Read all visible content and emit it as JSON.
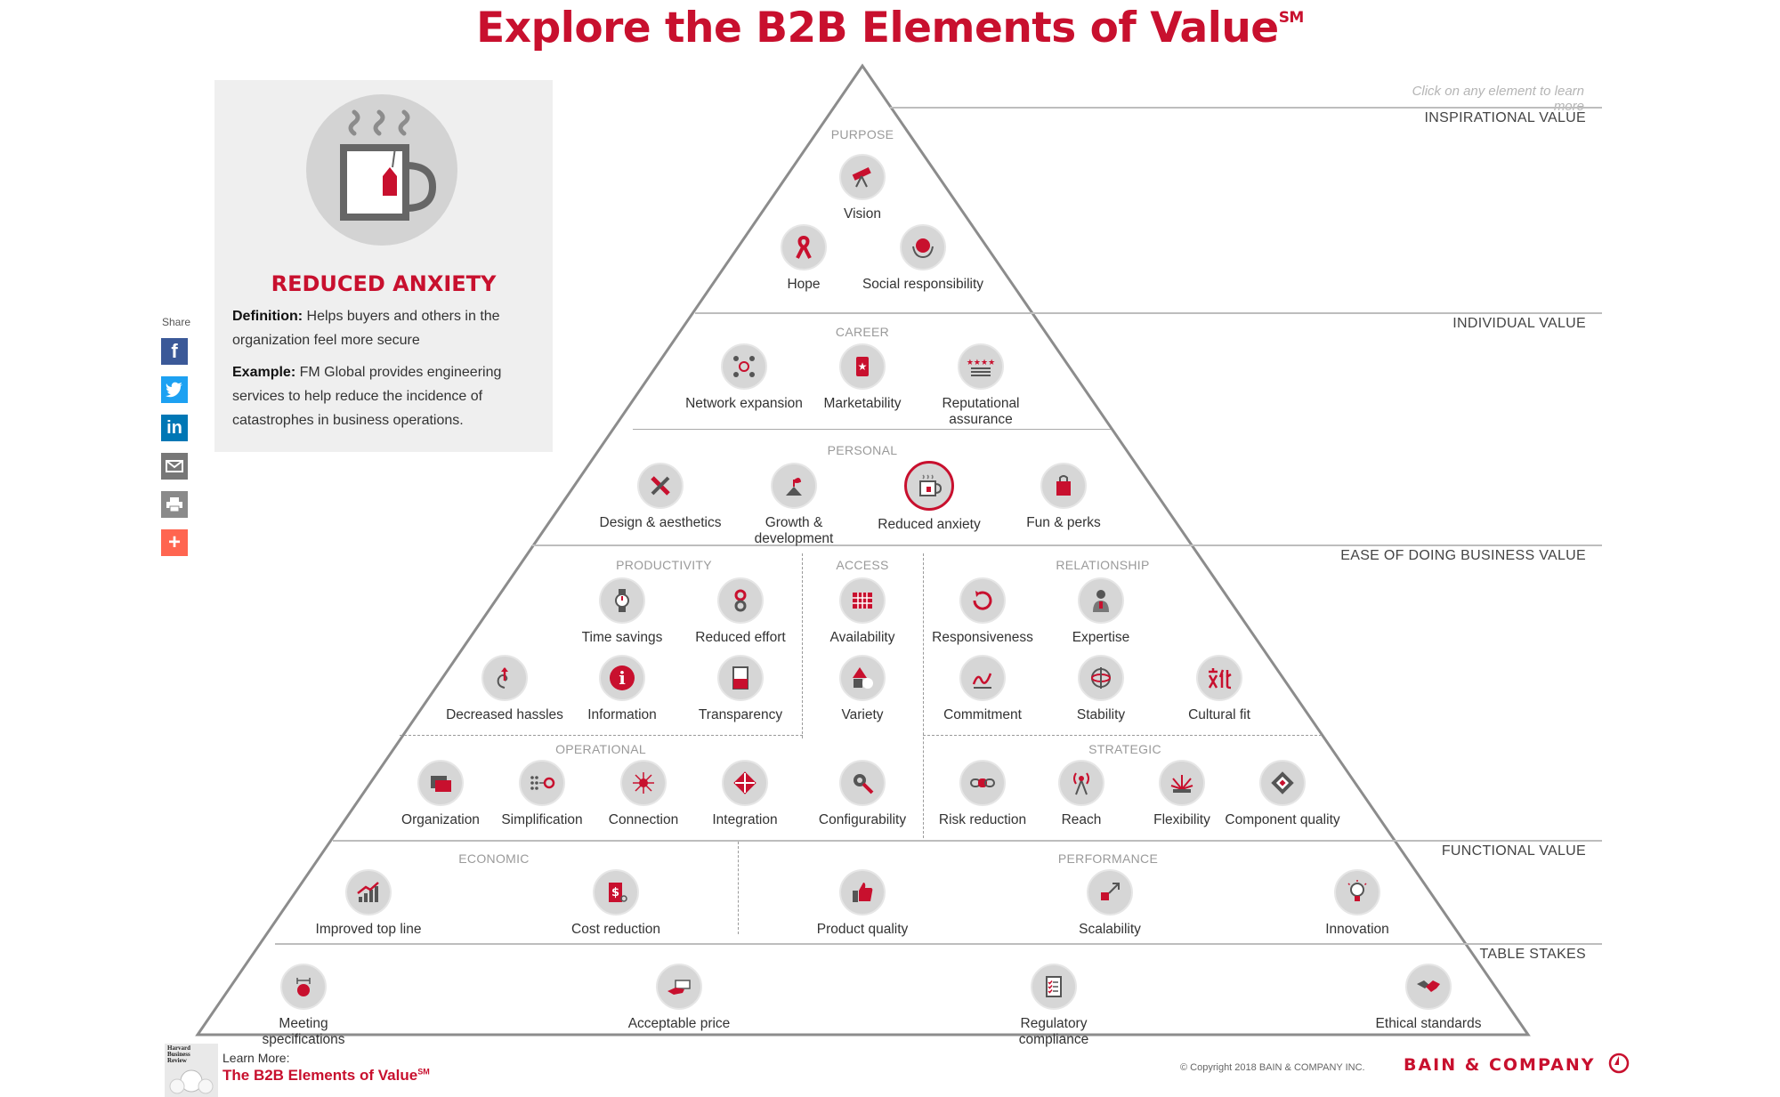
{
  "title": "Explore the B2B Elements of Value",
  "title_mark": "SM",
  "hint": "Click on any element to learn more",
  "tiers": {
    "inspirational": "INSPIRATIONAL VALUE",
    "individual": "INDIVIDUAL VALUE",
    "ease": "EASE OF DOING BUSINESS VALUE",
    "functional": "FUNCTIONAL VALUE",
    "table_stakes": "TABLE STAKES"
  },
  "sections": {
    "purpose": "PURPOSE",
    "career": "CAREER",
    "personal": "PERSONAL",
    "productivity": "PRODUCTIVITY",
    "access": "ACCESS",
    "relationship": "RELATIONSHIP",
    "operational": "OPERATIONAL",
    "strategic": "STRATEGIC",
    "economic": "ECONOMIC",
    "performance": "PERFORMANCE"
  },
  "elements": {
    "vision": {
      "label": "Vision",
      "icon": "telescope-icon"
    },
    "hope": {
      "label": "Hope",
      "icon": "ribbon-icon"
    },
    "social": {
      "label": "Social responsibility",
      "icon": "globe-hands-icon"
    },
    "network": {
      "label": "Network expansion",
      "icon": "network-icon"
    },
    "marketability": {
      "label": "Marketability",
      "icon": "star-badge-icon"
    },
    "reputational": {
      "label": "Reputational assurance",
      "icon": "stars-rating-icon"
    },
    "design": {
      "label": "Design & aesthetics",
      "icon": "pencil-ruler-icon"
    },
    "growth": {
      "label": "Growth & development",
      "icon": "sprout-icon"
    },
    "anxiety": {
      "label": "Reduced anxiety",
      "icon": "tea-cup-icon"
    },
    "fun": {
      "label": "Fun & perks",
      "icon": "shopping-bag-icon"
    },
    "time": {
      "label": "Time savings",
      "icon": "watch-icon"
    },
    "effort": {
      "label": "Reduced effort",
      "icon": "bead-switch-icon"
    },
    "availability": {
      "label": "Availability",
      "icon": "calendar-grid-icon"
    },
    "responsiveness": {
      "label": "Responsiveness",
      "icon": "cycle-arrow-icon"
    },
    "expertise": {
      "label": "Expertise",
      "icon": "expert-person-icon"
    },
    "hassles": {
      "label": "Decreased hassles",
      "icon": "spiral-arrow-icon"
    },
    "information": {
      "label": "Information",
      "icon": "info-icon"
    },
    "transparency": {
      "label": "Transparency",
      "icon": "document-icon"
    },
    "variety": {
      "label": "Variety",
      "icon": "shapes-icon"
    },
    "commitment": {
      "label": "Commitment",
      "icon": "signature-icon"
    },
    "stability": {
      "label": "Stability",
      "icon": "gyroscope-icon"
    },
    "cultural": {
      "label": "Cultural fit",
      "icon": "chinese-characters-icon"
    },
    "organization": {
      "label": "Organization",
      "icon": "folder-icon"
    },
    "simplification": {
      "label": "Simplification",
      "icon": "dots-to-circle-icon"
    },
    "connection": {
      "label": "Connection",
      "icon": "hub-icon"
    },
    "integration": {
      "label": "Integration",
      "icon": "puzzle-icon"
    },
    "configurability": {
      "label": "Configurability",
      "icon": "wrench-gear-icon"
    },
    "risk": {
      "label": "Risk reduction",
      "icon": "chain-link-icon"
    },
    "reach": {
      "label": "Reach",
      "icon": "antenna-icon"
    },
    "flexibility": {
      "label": "Flexibility",
      "icon": "sunburst-icon"
    },
    "component": {
      "label": "Component quality",
      "icon": "chip-icon"
    },
    "topline": {
      "label": "Improved top line",
      "icon": "growth-chart-icon"
    },
    "cost": {
      "label": "Cost reduction",
      "icon": "price-cut-icon"
    },
    "product": {
      "label": "Product quality",
      "icon": "thumbs-up-icon"
    },
    "scalability": {
      "label": "Scalability",
      "icon": "resize-arrow-icon"
    },
    "innovation": {
      "label": "Innovation",
      "icon": "lightbulb-icon"
    },
    "specs": {
      "label": "Meeting specifications",
      "icon": "measure-icon"
    },
    "price": {
      "label": "Acceptable price",
      "icon": "money-hand-icon"
    },
    "regulatory": {
      "label": "Regulatory compliance",
      "icon": "checklist-icon"
    },
    "ethical": {
      "label": "Ethical standards",
      "icon": "handshake-icon"
    }
  },
  "detail": {
    "title": "REDUCED ANXIETY",
    "definition_label": "Definition:",
    "definition": "Helps buyers and others in the organization feel more secure",
    "example_label": "Example:",
    "example": "FM Global provides engineering services to help reduce the incidence of catastrophes in business operations."
  },
  "share": {
    "label": "Share",
    "buttons": [
      "facebook-icon",
      "twitter-icon",
      "linkedin-icon",
      "email-icon",
      "print-icon",
      "more-icon"
    ]
  },
  "footer": {
    "learn_more": "Learn More:",
    "link": "The B2B Elements of Value",
    "link_mark": "SM",
    "hbr": "Harvard Business Review",
    "copyright": "© Copyright 2018 BAIN & COMPANY INC.",
    "brand": "BAIN & COMPANY"
  },
  "colors": {
    "accent": "#c8102e",
    "icon_bg": "#d6d6d6",
    "panel_bg": "#efefef",
    "facebook": "#3b5998",
    "twitter": "#1da1f2",
    "linkedin": "#0077b5",
    "email": "#777777",
    "print": "#8a8a8a",
    "more": "#ff6550"
  }
}
